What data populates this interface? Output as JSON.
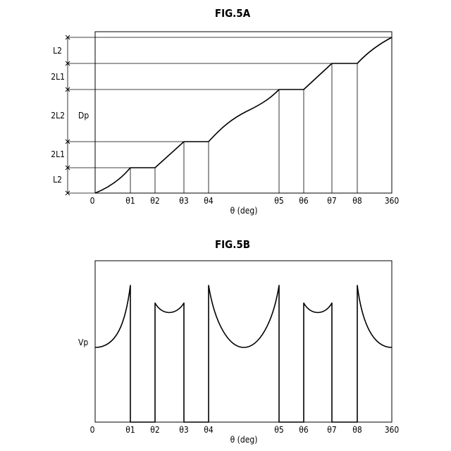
{
  "fig_a": {
    "title": "FIG.5A",
    "y_label": "Dp",
    "x_axis_label": "θ (deg)",
    "x_ticks": [
      "0",
      "θ1",
      "θ2",
      "θ3",
      "θ4",
      "θ5",
      "θ6",
      "θ7",
      "θ8",
      "360"
    ],
    "segment_labels": [
      "L2",
      "2L1",
      "2L2",
      "2L1",
      "L2"
    ]
  },
  "fig_b": {
    "title": "FIG.5B",
    "y_label": "Vp",
    "x_axis_label": "θ (deg)",
    "x_ticks": [
      "0",
      "θ1",
      "θ2",
      "θ3",
      "θ4",
      "θ5",
      "θ6",
      "θ7",
      "θ8",
      "360"
    ]
  }
}
